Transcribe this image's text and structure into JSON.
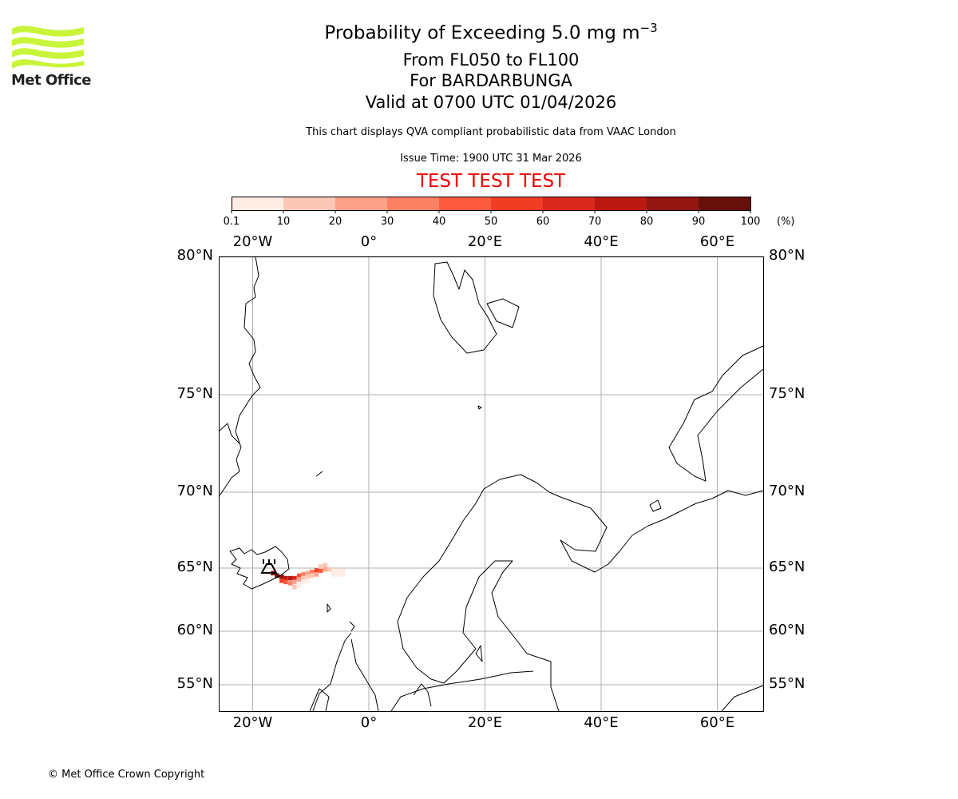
{
  "logo": {
    "text": "Met Office",
    "color": "#c8f53a"
  },
  "header": {
    "title_main": "Probability of Exceeding 5.0 mg m",
    "title_sup": "−3",
    "levels": "From FL050 to FL100",
    "volcano": "For BARDARBUNGA",
    "valid": "Valid at 0700 UTC 01/04/2026",
    "description": "This chart displays QVA compliant probabilistic data from VAAC London",
    "issue": "Issue Time: 1900 UTC 31 Mar 2026",
    "test_banner": "TEST TEST TEST",
    "test_color": "#ee0000"
  },
  "chart_data": {
    "type": "heatmap",
    "title": "Probability of Exceeding 5.0 mg m−3",
    "colorbar": {
      "unit": "(%)",
      "ticks": [
        "0.1",
        "10",
        "20",
        "30",
        "40",
        "50",
        "60",
        "70",
        "80",
        "90",
        "100"
      ],
      "colors": [
        "#ffece5",
        "#fcc7b5",
        "#fca38a",
        "#fc8164",
        "#fb5a3f",
        "#f23d25",
        "#d9281c",
        "#bb1812",
        "#921510",
        "#67100b"
      ]
    },
    "lon_ticks": [
      "20°W",
      "0°",
      "20°E",
      "40°E",
      "60°E"
    ],
    "lat_ticks": [
      "80°N",
      "75°N",
      "70°N",
      "65°N",
      "60°N",
      "55°N"
    ],
    "volcano": {
      "name": "BARDARBUNGA",
      "lon": -17.5,
      "lat": 64.6
    },
    "cells": [
      [
        -16.5,
        64.6,
        80
      ],
      [
        -15.8,
        64.4,
        90
      ],
      [
        -15.0,
        64.3,
        80
      ],
      [
        -14.3,
        64.2,
        70
      ],
      [
        -13.5,
        64.2,
        70
      ],
      [
        -12.8,
        64.2,
        60
      ],
      [
        -15.0,
        64.0,
        50
      ],
      [
        -14.3,
        63.9,
        40
      ],
      [
        -13.5,
        63.8,
        30
      ],
      [
        -12.8,
        63.9,
        20
      ],
      [
        -12.8,
        63.5,
        10
      ],
      [
        -12.0,
        63.6,
        5
      ],
      [
        -12.0,
        64.4,
        40
      ],
      [
        -11.3,
        64.5,
        30
      ],
      [
        -10.5,
        64.6,
        20
      ],
      [
        -9.8,
        64.7,
        30
      ],
      [
        -9.0,
        64.8,
        50
      ],
      [
        -8.3,
        64.8,
        40
      ],
      [
        -7.5,
        64.9,
        20
      ],
      [
        -6.8,
        64.9,
        10
      ],
      [
        -6.0,
        64.8,
        5
      ],
      [
        -5.3,
        64.8,
        5
      ],
      [
        -4.5,
        64.8,
        5
      ],
      [
        -12.0,
        64.1,
        20
      ],
      [
        -11.3,
        64.2,
        10
      ],
      [
        -10.5,
        64.3,
        15
      ],
      [
        -9.8,
        64.4,
        10
      ],
      [
        -9.0,
        64.5,
        20
      ],
      [
        -8.3,
        65.1,
        15
      ],
      [
        -7.5,
        65.2,
        10
      ],
      [
        -6.0,
        64.5,
        5
      ],
      [
        -5.3,
        64.5,
        5
      ],
      [
        -11.3,
        63.9,
        5
      ],
      [
        -10.5,
        64.0,
        5
      ],
      [
        -4.5,
        64.5,
        3
      ]
    ]
  },
  "footer": {
    "copyright": "© Met Office Crown Copyright"
  }
}
